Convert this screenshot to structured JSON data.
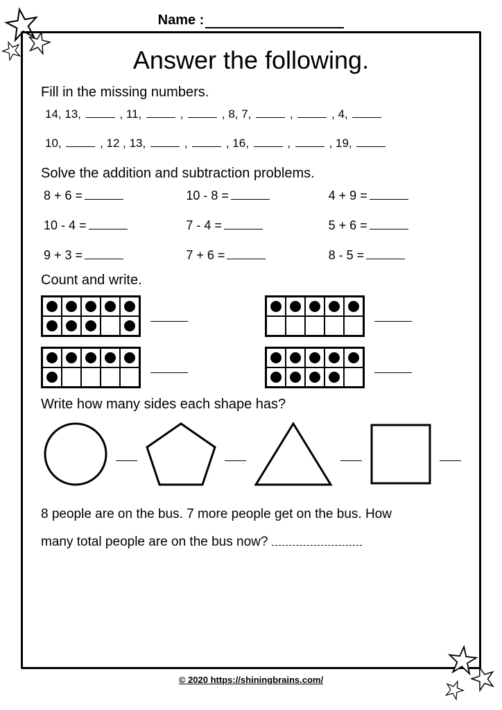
{
  "header": {
    "name_label": "Name :"
  },
  "title": "Answer the following.",
  "section1": {
    "heading": "Fill in the missing numbers.",
    "seq1": [
      "14, 13,",
      null,
      ", 11,",
      null,
      ",",
      null,
      ", 8, 7,",
      null,
      ",",
      null,
      ", 4,",
      null
    ],
    "seq2": [
      "10,",
      null,
      ", 12 , 13,",
      null,
      ",",
      null,
      ", 16,",
      null,
      ",",
      null,
      ", 19,",
      null
    ]
  },
  "section2": {
    "heading": "Solve the addition and subtraction problems.",
    "problems": [
      "8 + 6 =",
      "10 - 8 =",
      "4 + 9 =",
      "10 - 4 =",
      "7 - 4 =",
      "5 + 6 =",
      "9 + 3 =",
      "7 + 6 =",
      "8 - 5 ="
    ]
  },
  "section3": {
    "heading": "Count and write.",
    "frames": [
      {
        "dots": [
          1,
          1,
          1,
          1,
          1,
          1,
          1,
          1,
          0,
          1
        ]
      },
      {
        "dots": [
          1,
          1,
          1,
          1,
          1,
          0,
          0,
          0,
          0,
          0
        ]
      },
      {
        "dots": [
          1,
          1,
          1,
          1,
          1,
          1,
          0,
          0,
          0,
          0
        ]
      },
      {
        "dots": [
          1,
          1,
          1,
          1,
          1,
          1,
          1,
          1,
          1,
          0
        ]
      }
    ]
  },
  "section4": {
    "heading": "Write how many sides each shape has?",
    "shapes": [
      "circle",
      "pentagon",
      "triangle",
      "square"
    ]
  },
  "word_problem": {
    "text1": "8 people are on the bus. 7 more people get on the bus. How",
    "text2": "many total people are on the bus now?"
  },
  "footer": "© 2020 https://shiningbrains.com/",
  "colors": {
    "stroke": "#000000",
    "bg": "#ffffff"
  }
}
